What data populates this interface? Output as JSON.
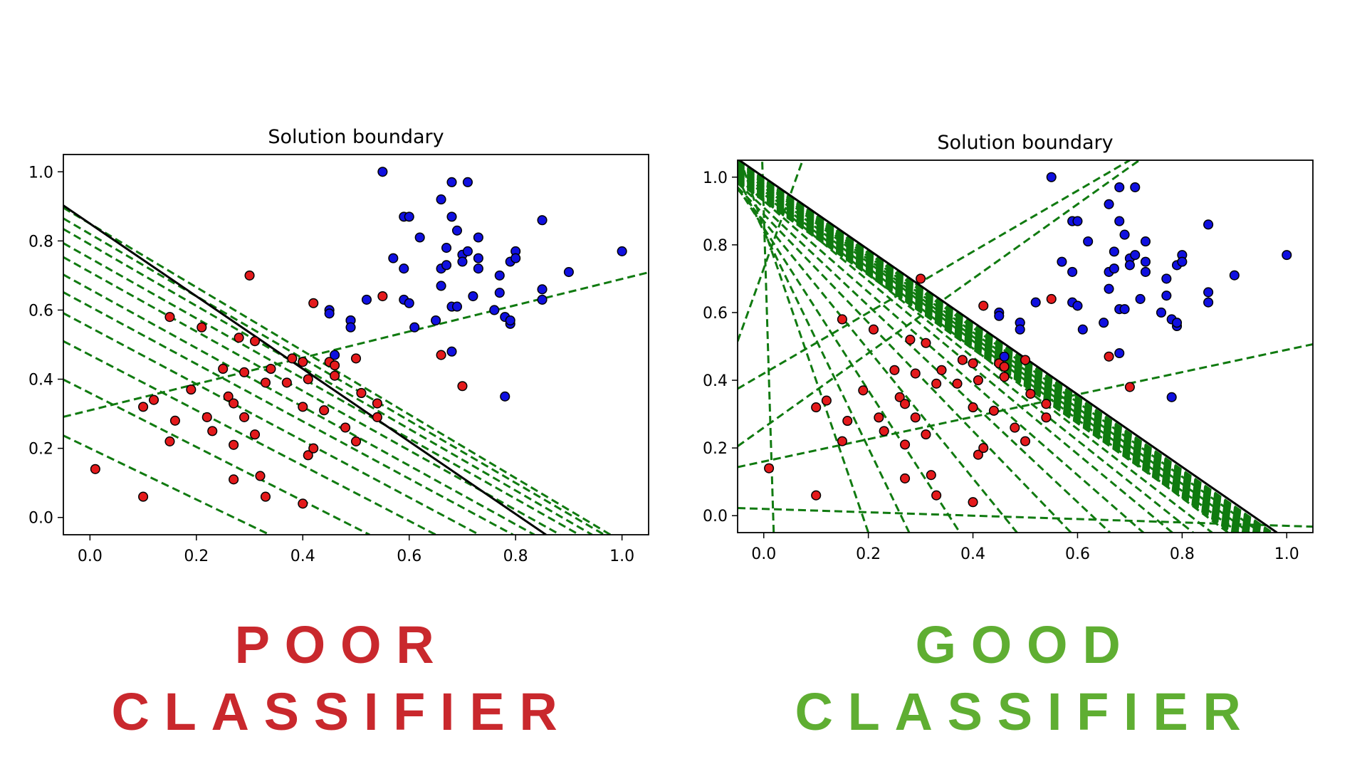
{
  "colors": {
    "poor": "#c9282d",
    "good": "#5fae32",
    "boundary": "#000000",
    "candidate_line": "#107a10",
    "class_red": "#e41a1c",
    "class_blue": "#1010e0"
  },
  "captions": {
    "poor": {
      "line1": "POOR",
      "line2": "CLASSIFIER"
    },
    "good": {
      "line1": "GOOD",
      "line2": "CLASSIFIER"
    }
  },
  "chart_data": [
    {
      "type": "scatter",
      "title": "Solution boundary",
      "xlabel": "",
      "ylabel": "",
      "xlim": [
        -0.05,
        1.05
      ],
      "ylim": [
        -0.05,
        1.05
      ],
      "xticks": [
        "0.0",
        "0.2",
        "0.4",
        "0.6",
        "0.8",
        "1.0"
      ],
      "yticks": [
        "0.0",
        "0.2",
        "0.4",
        "0.6",
        "0.8",
        "1.0"
      ],
      "grid": false,
      "series": [
        {
          "color": "red",
          "points": [
            [
              0.01,
              0.14
            ],
            [
              0.1,
              0.06
            ],
            [
              0.1,
              0.32
            ],
            [
              0.12,
              0.34
            ],
            [
              0.15,
              0.22
            ],
            [
              0.15,
              0.58
            ],
            [
              0.16,
              0.28
            ],
            [
              0.19,
              0.37
            ],
            [
              0.21,
              0.55
            ],
            [
              0.22,
              0.29
            ],
            [
              0.23,
              0.25
            ],
            [
              0.25,
              0.43
            ],
            [
              0.26,
              0.35
            ],
            [
              0.27,
              0.11
            ],
            [
              0.27,
              0.33
            ],
            [
              0.27,
              0.21
            ],
            [
              0.28,
              0.52
            ],
            [
              0.29,
              0.29
            ],
            [
              0.29,
              0.42
            ],
            [
              0.3,
              0.7
            ],
            [
              0.31,
              0.51
            ],
            [
              0.31,
              0.24
            ],
            [
              0.32,
              0.12
            ],
            [
              0.33,
              0.39
            ],
            [
              0.33,
              0.06
            ],
            [
              0.34,
              0.43
            ],
            [
              0.37,
              0.39
            ],
            [
              0.38,
              0.46
            ],
            [
              0.4,
              0.32
            ],
            [
              0.4,
              0.45
            ],
            [
              0.4,
              0.04
            ],
            [
              0.41,
              0.4
            ],
            [
              0.41,
              0.18
            ],
            [
              0.42,
              0.62
            ],
            [
              0.42,
              0.2
            ],
            [
              0.44,
              0.31
            ],
            [
              0.45,
              0.45
            ],
            [
              0.46,
              0.44
            ],
            [
              0.46,
              0.41
            ],
            [
              0.48,
              0.26
            ],
            [
              0.49,
              0.57
            ],
            [
              0.5,
              0.46
            ],
            [
              0.5,
              0.22
            ],
            [
              0.51,
              0.36
            ],
            [
              0.54,
              0.33
            ],
            [
              0.54,
              0.29
            ],
            [
              0.55,
              0.64
            ],
            [
              0.66,
              0.47
            ],
            [
              0.7,
              0.38
            ]
          ]
        },
        {
          "color": "blue",
          "points": [
            [
              0.45,
              0.6
            ],
            [
              0.45,
              0.59
            ],
            [
              0.46,
              0.47
            ],
            [
              0.49,
              0.57
            ],
            [
              0.49,
              0.55
            ],
            [
              0.52,
              0.63
            ],
            [
              0.55,
              1.0
            ],
            [
              0.57,
              0.75
            ],
            [
              0.59,
              0.87
            ],
            [
              0.59,
              0.72
            ],
            [
              0.59,
              0.63
            ],
            [
              0.6,
              0.62
            ],
            [
              0.6,
              0.87
            ],
            [
              0.61,
              0.55
            ],
            [
              0.62,
              0.81
            ],
            [
              0.65,
              0.57
            ],
            [
              0.66,
              0.92
            ],
            [
              0.66,
              0.72
            ],
            [
              0.66,
              0.67
            ],
            [
              0.67,
              0.73
            ],
            [
              0.67,
              0.78
            ],
            [
              0.68,
              0.97
            ],
            [
              0.68,
              0.87
            ],
            [
              0.68,
              0.61
            ],
            [
              0.68,
              0.48
            ],
            [
              0.69,
              0.83
            ],
            [
              0.69,
              0.61
            ],
            [
              0.7,
              0.76
            ],
            [
              0.7,
              0.74
            ],
            [
              0.71,
              0.97
            ],
            [
              0.71,
              0.77
            ],
            [
              0.72,
              0.64
            ],
            [
              0.73,
              0.81
            ],
            [
              0.73,
              0.75
            ],
            [
              0.73,
              0.72
            ],
            [
              0.76,
              0.6
            ],
            [
              0.77,
              0.65
            ],
            [
              0.77,
              0.7
            ],
            [
              0.78,
              0.35
            ],
            [
              0.78,
              0.58
            ],
            [
              0.79,
              0.74
            ],
            [
              0.79,
              0.56
            ],
            [
              0.79,
              0.57
            ],
            [
              0.8,
              0.77
            ],
            [
              0.8,
              0.75
            ],
            [
              0.85,
              0.66
            ],
            [
              0.85,
              0.63
            ],
            [
              0.85,
              0.86
            ],
            [
              0.9,
              0.71
            ],
            [
              1.0,
              0.77
            ]
          ]
        }
      ],
      "boundary": {
        "slope": -1.05,
        "intercept": 0.85
      },
      "candidate_lines": [
        {
          "slope": 0.38,
          "intercept": 0.31
        },
        {
          "slope": -0.92,
          "intercept": 0.85
        },
        {
          "slope": -0.9,
          "intercept": 0.82
        },
        {
          "slope": -0.89,
          "intercept": 0.79
        },
        {
          "slope": -0.87,
          "intercept": 0.75
        },
        {
          "slope": -0.86,
          "intercept": 0.71
        },
        {
          "slope": -0.85,
          "intercept": 0.66
        },
        {
          "slope": -0.83,
          "intercept": 0.61
        },
        {
          "slope": -0.82,
          "intercept": 0.55
        },
        {
          "slope": -0.8,
          "intercept": 0.47
        },
        {
          "slope": -0.78,
          "intercept": 0.36
        },
        {
          "slope": -0.74,
          "intercept": 0.2
        }
      ]
    },
    {
      "type": "scatter",
      "title": "Solution boundary",
      "xlabel": "",
      "ylabel": "",
      "xlim": [
        -0.05,
        1.05
      ],
      "ylim": [
        -0.05,
        1.05
      ],
      "xticks": [
        "0.0",
        "0.2",
        "0.4",
        "0.6",
        "0.8",
        "1.0"
      ],
      "yticks": [
        "0.0",
        "0.2",
        "0.4",
        "0.6",
        "0.8",
        "1.0"
      ],
      "grid": false,
      "series": [
        {
          "color": "red",
          "points": [
            [
              0.01,
              0.14
            ],
            [
              0.1,
              0.06
            ],
            [
              0.1,
              0.32
            ],
            [
              0.12,
              0.34
            ],
            [
              0.15,
              0.22
            ],
            [
              0.15,
              0.58
            ],
            [
              0.16,
              0.28
            ],
            [
              0.19,
              0.37
            ],
            [
              0.21,
              0.55
            ],
            [
              0.22,
              0.29
            ],
            [
              0.23,
              0.25
            ],
            [
              0.25,
              0.43
            ],
            [
              0.26,
              0.35
            ],
            [
              0.27,
              0.11
            ],
            [
              0.27,
              0.33
            ],
            [
              0.27,
              0.21
            ],
            [
              0.28,
              0.52
            ],
            [
              0.29,
              0.29
            ],
            [
              0.29,
              0.42
            ],
            [
              0.3,
              0.7
            ],
            [
              0.31,
              0.51
            ],
            [
              0.31,
              0.24
            ],
            [
              0.32,
              0.12
            ],
            [
              0.33,
              0.39
            ],
            [
              0.33,
              0.06
            ],
            [
              0.34,
              0.43
            ],
            [
              0.37,
              0.39
            ],
            [
              0.38,
              0.46
            ],
            [
              0.4,
              0.32
            ],
            [
              0.4,
              0.45
            ],
            [
              0.4,
              0.04
            ],
            [
              0.41,
              0.4
            ],
            [
              0.41,
              0.18
            ],
            [
              0.42,
              0.62
            ],
            [
              0.42,
              0.2
            ],
            [
              0.44,
              0.31
            ],
            [
              0.45,
              0.45
            ],
            [
              0.46,
              0.44
            ],
            [
              0.46,
              0.41
            ],
            [
              0.48,
              0.26
            ],
            [
              0.49,
              0.57
            ],
            [
              0.5,
              0.46
            ],
            [
              0.5,
              0.22
            ],
            [
              0.51,
              0.36
            ],
            [
              0.54,
              0.33
            ],
            [
              0.54,
              0.29
            ],
            [
              0.55,
              0.64
            ],
            [
              0.66,
              0.47
            ],
            [
              0.7,
              0.38
            ]
          ]
        },
        {
          "color": "blue",
          "points": [
            [
              0.45,
              0.6
            ],
            [
              0.45,
              0.59
            ],
            [
              0.46,
              0.47
            ],
            [
              0.49,
              0.57
            ],
            [
              0.49,
              0.55
            ],
            [
              0.52,
              0.63
            ],
            [
              0.55,
              1.0
            ],
            [
              0.57,
              0.75
            ],
            [
              0.59,
              0.87
            ],
            [
              0.59,
              0.72
            ],
            [
              0.59,
              0.63
            ],
            [
              0.6,
              0.62
            ],
            [
              0.6,
              0.87
            ],
            [
              0.61,
              0.55
            ],
            [
              0.62,
              0.81
            ],
            [
              0.65,
              0.57
            ],
            [
              0.66,
              0.92
            ],
            [
              0.66,
              0.72
            ],
            [
              0.66,
              0.67
            ],
            [
              0.67,
              0.73
            ],
            [
              0.67,
              0.78
            ],
            [
              0.68,
              0.97
            ],
            [
              0.68,
              0.87
            ],
            [
              0.68,
              0.61
            ],
            [
              0.68,
              0.48
            ],
            [
              0.69,
              0.83
            ],
            [
              0.69,
              0.61
            ],
            [
              0.7,
              0.76
            ],
            [
              0.7,
              0.74
            ],
            [
              0.71,
              0.97
            ],
            [
              0.71,
              0.77
            ],
            [
              0.72,
              0.64
            ],
            [
              0.73,
              0.81
            ],
            [
              0.73,
              0.75
            ],
            [
              0.73,
              0.72
            ],
            [
              0.76,
              0.6
            ],
            [
              0.77,
              0.65
            ],
            [
              0.77,
              0.7
            ],
            [
              0.78,
              0.35
            ],
            [
              0.78,
              0.58
            ],
            [
              0.79,
              0.74
            ],
            [
              0.79,
              0.56
            ],
            [
              0.79,
              0.57
            ],
            [
              0.8,
              0.77
            ],
            [
              0.8,
              0.75
            ],
            [
              0.85,
              0.66
            ],
            [
              0.85,
              0.63
            ],
            [
              0.85,
              0.86
            ],
            [
              0.9,
              0.71
            ],
            [
              1.0,
              0.77
            ]
          ]
        }
      ],
      "boundary": {
        "slope": -1.07,
        "intercept": 1.0
      },
      "candidate_lines": [
        {
          "slope": 4.3,
          "intercept": 0.73
        },
        {
          "slope": -0.05,
          "intercept": 0.02
        },
        {
          "slope": 0.33,
          "intercept": 0.16
        },
        {
          "slope": 1.1,
          "intercept": 0.26
        },
        {
          "slope": -50.0,
          "intercept": 0.9
        },
        {
          "slope": 0.9,
          "intercept": 0.42
        },
        {
          "slope": -4.5,
          "intercept": 0.85
        },
        {
          "slope": -3.2,
          "intercept": 0.84
        },
        {
          "slope": -2.4,
          "intercept": 0.85
        },
        {
          "slope": -1.9,
          "intercept": 0.87
        },
        {
          "slope": -1.6,
          "intercept": 0.89
        },
        {
          "slope": -1.45,
          "intercept": 0.91
        },
        {
          "slope": -1.35,
          "intercept": 0.93
        },
        {
          "slope": -1.28,
          "intercept": 0.95
        },
        {
          "slope": -1.23,
          "intercept": 0.96
        },
        {
          "slope": -1.19,
          "intercept": 0.97
        },
        {
          "slope": -1.16,
          "intercept": 0.98
        },
        {
          "slope": -1.14,
          "intercept": 0.985
        },
        {
          "slope": -1.12,
          "intercept": 0.99
        },
        {
          "slope": -1.1,
          "intercept": 0.995
        }
      ]
    }
  ]
}
